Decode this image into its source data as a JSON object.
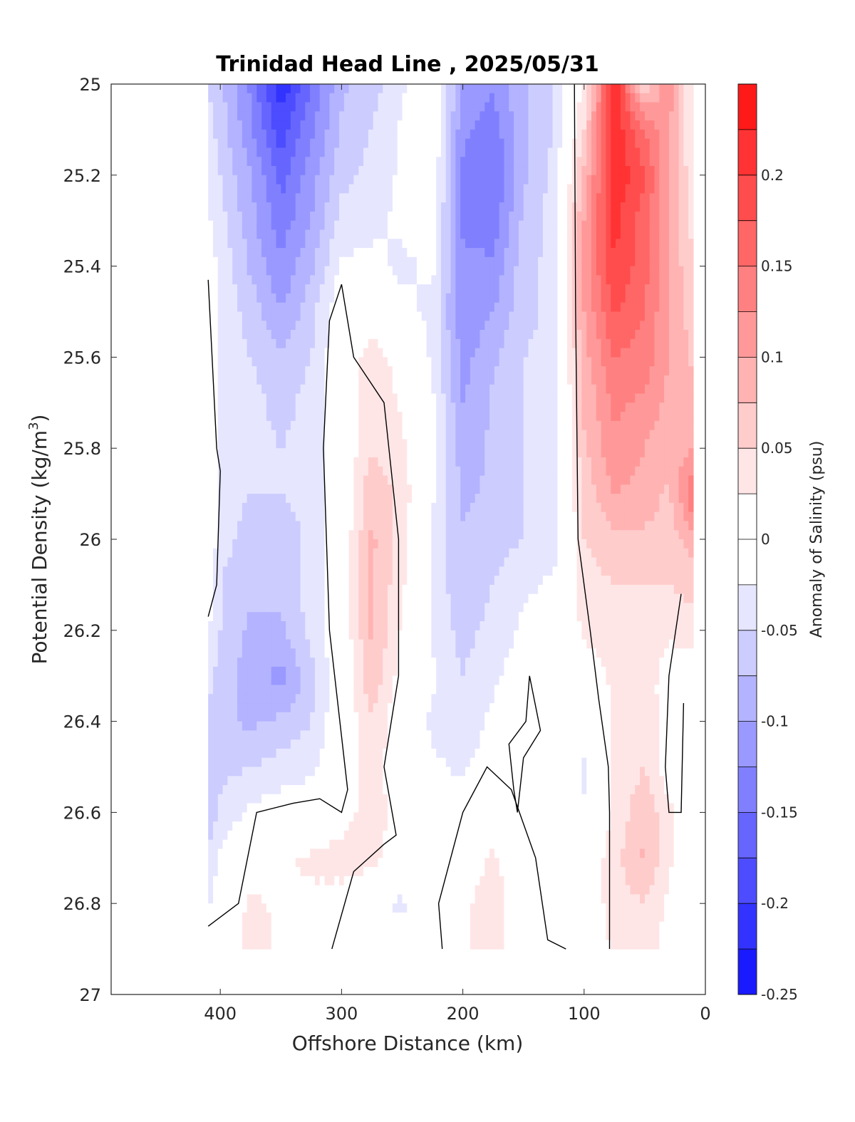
{
  "chart_data": {
    "type": "heatmap",
    "title": "Trinidad Head Line , 2025/05/31",
    "xlabel": "Offshore Distance (km)",
    "ylabel_main": "Potential Density (kg/m",
    "ylabel_sup": "3",
    "ylabel_close": ")",
    "colorbar_label": "Anomaly of Salinity (psu)",
    "xlim": [
      490,
      0
    ],
    "ylim": [
      27,
      25
    ],
    "x_reversed": true,
    "y_reversed": true,
    "x_ticks": [
      400,
      300,
      200,
      100,
      0
    ],
    "x_tick_labels": [
      "400",
      "300",
      "200",
      "100",
      "0"
    ],
    "y_ticks": [
      25,
      25.2,
      25.4,
      25.6,
      25.8,
      26,
      26.2,
      26.4,
      26.6,
      26.8,
      27
    ],
    "y_tick_labels": [
      "25",
      "25.2",
      "25.4",
      "25.6",
      "25.8",
      "26",
      "26.2",
      "26.4",
      "26.6",
      "26.8",
      "27"
    ],
    "colorbar": {
      "levels": [
        -0.25,
        -0.225,
        -0.2,
        -0.175,
        -0.15,
        -0.125,
        -0.1,
        -0.075,
        -0.05,
        -0.025,
        0,
        0.025,
        0.05,
        0.075,
        0.1,
        0.125,
        0.15,
        0.175,
        0.2,
        0.225,
        0.25
      ],
      "colors": [
        "#0000ff",
        "#1a1aff",
        "#3333ff",
        "#4d4dff",
        "#6666ff",
        "#8080ff",
        "#9999ff",
        "#b3b3ff",
        "#ccccff",
        "#e6e6ff",
        "#ffffff",
        "#ffffff",
        "#ffe6e6",
        "#ffcccc",
        "#ffb3b3",
        "#ff9999",
        "#ff8080",
        "#ff6666",
        "#ff4d4d",
        "#ff3333",
        "#ff1a1a",
        "#ff0000"
      ],
      "tick_values": [
        -0.25,
        -0.2,
        -0.15,
        -0.1,
        -0.05,
        0,
        0.05,
        0.1,
        0.15,
        0.2
      ],
      "tick_labels": [
        "-0.25",
        "-0.2",
        "-0.15",
        "-0.1",
        "-0.05",
        "0",
        "0.05",
        "0.1",
        "0.15",
        "0.2"
      ],
      "range": [
        -0.25,
        0.25
      ]
    },
    "data_extent": {
      "x": [
        10,
        410
      ],
      "y": [
        25,
        26.9
      ]
    },
    "grid_x": [
      410,
      400,
      375,
      350,
      325,
      300,
      275,
      250,
      225,
      200,
      175,
      150,
      125,
      100,
      75,
      50,
      30,
      10
    ],
    "grid_y": [
      25,
      25.1,
      25.2,
      25.3,
      25.4,
      25.5,
      25.6,
      25.7,
      25.8,
      25.9,
      26,
      26.1,
      26.2,
      26.3,
      26.4,
      26.5,
      26.6,
      26.7,
      26.8,
      26.9
    ],
    "values": [
      [
        -0.05,
        -0.07,
        -0.13,
        -0.22,
        -0.15,
        -0.08,
        -0.06,
        -0.03,
        0.0,
        -0.1,
        -0.12,
        -0.08,
        -0.05,
        0.03,
        0.22,
        0.05,
        0.12,
        0.02
      ],
      [
        -0.04,
        -0.06,
        -0.12,
        -0.19,
        -0.13,
        -0.07,
        -0.05,
        -0.02,
        0.0,
        -0.12,
        -0.14,
        -0.08,
        -0.05,
        0.05,
        0.22,
        0.15,
        0.1,
        0.02
      ],
      [
        -0.03,
        -0.05,
        -0.1,
        -0.16,
        -0.11,
        -0.06,
        -0.04,
        -0.02,
        0.0,
        -0.13,
        -0.15,
        -0.08,
        -0.04,
        0.08,
        0.22,
        0.18,
        0.1,
        0.03
      ],
      [
        -0.02,
        -0.04,
        -0.09,
        -0.14,
        -0.1,
        -0.04,
        -0.03,
        -0.02,
        -0.01,
        -0.13,
        -0.14,
        -0.07,
        -0.04,
        0.1,
        0.21,
        0.16,
        0.1,
        0.04
      ],
      [
        -0.01,
        -0.03,
        -0.08,
        -0.12,
        -0.08,
        -0.02,
        -0.02,
        -0.03,
        -0.02,
        -0.12,
        -0.12,
        -0.06,
        -0.04,
        0.11,
        0.2,
        0.16,
        0.1,
        0.05
      ],
      [
        0.0,
        -0.03,
        -0.06,
        -0.1,
        -0.06,
        0.0,
        0.01,
        -0.02,
        -0.03,
        -0.12,
        -0.1,
        -0.06,
        -0.04,
        0.1,
        0.18,
        0.15,
        0.1,
        0.06
      ],
      [
        0.01,
        -0.03,
        -0.05,
        -0.07,
        -0.05,
        0.0,
        0.04,
        0.01,
        -0.03,
        -0.11,
        -0.08,
        -0.05,
        -0.04,
        0.09,
        0.15,
        0.14,
        0.1,
        0.07
      ],
      [
        0.02,
        -0.03,
        -0.04,
        -0.06,
        -0.04,
        0.0,
        0.05,
        0.02,
        -0.02,
        -0.1,
        -0.07,
        -0.05,
        -0.04,
        0.08,
        0.13,
        0.12,
        0.09,
        0.08
      ],
      [
        0.02,
        -0.03,
        -0.04,
        -0.05,
        -0.04,
        0.0,
        0.05,
        0.03,
        -0.01,
        -0.09,
        -0.07,
        -0.05,
        -0.04,
        0.07,
        0.12,
        0.1,
        0.08,
        0.1
      ],
      [
        0.01,
        -0.04,
        -0.05,
        -0.05,
        -0.04,
        0.0,
        0.07,
        0.04,
        -0.02,
        -0.08,
        -0.07,
        -0.05,
        -0.04,
        0.06,
        0.1,
        0.09,
        0.07,
        0.15
      ],
      [
        0.0,
        -0.04,
        -0.06,
        -0.07,
        -0.04,
        0.0,
        0.08,
        0.04,
        -0.03,
        -0.07,
        -0.06,
        -0.05,
        -0.04,
        0.05,
        0.07,
        0.07,
        0.06,
        0.09
      ],
      [
        -0.01,
        -0.05,
        -0.07,
        -0.07,
        -0.04,
        0.0,
        0.08,
        0.03,
        -0.03,
        -0.07,
        -0.05,
        -0.03,
        -0.02,
        0.04,
        0.05,
        0.05,
        0.05,
        0.06
      ],
      [
        -0.02,
        -0.05,
        -0.08,
        -0.08,
        -0.04,
        0.0,
        0.08,
        0.02,
        -0.03,
        -0.06,
        -0.04,
        -0.02,
        -0.01,
        0.03,
        0.04,
        0.04,
        0.03,
        0.04
      ],
      [
        -0.04,
        -0.06,
        -0.09,
        -0.11,
        -0.06,
        0.0,
        0.07,
        0.01,
        -0.02,
        -0.05,
        -0.03,
        -0.01,
        0.0,
        0.01,
        0.03,
        0.04,
        0.01,
        0.01
      ],
      [
        -0.06,
        -0.07,
        -0.08,
        -0.07,
        -0.05,
        0.0,
        0.05,
        0.0,
        -0.03,
        -0.04,
        -0.02,
        0.0,
        0.0,
        -0.01,
        0.03,
        0.05,
        0.0,
        0.0
      ],
      [
        -0.08,
        -0.06,
        -0.05,
        -0.04,
        -0.03,
        0.0,
        0.04,
        0.0,
        -0.02,
        -0.03,
        -0.01,
        0.0,
        0.0,
        -0.03,
        0.03,
        0.05,
        0.01,
        0.0
      ],
      [
        -0.07,
        -0.04,
        -0.02,
        -0.01,
        -0.01,
        0.01,
        0.04,
        0.01,
        -0.01,
        -0.01,
        0.0,
        0.0,
        0.0,
        -0.02,
        0.03,
        0.07,
        0.03,
        0.0
      ],
      [
        -0.05,
        -0.02,
        0.0,
        0.02,
        0.03,
        0.04,
        0.04,
        0.0,
        0.0,
        0.0,
        0.03,
        0.0,
        0.0,
        0.0,
        0.04,
        0.08,
        0.03,
        0.0
      ],
      [
        -0.03,
        0.0,
        0.03,
        0.02,
        0.02,
        0.01,
        -0.02,
        -0.03,
        0.0,
        0.02,
        0.04,
        0.0,
        0.0,
        0.0,
        0.04,
        0.05,
        0.02,
        0.0
      ],
      [
        -0.02,
        0.0,
        0.04,
        0.02,
        0.01,
        0.0,
        -0.02,
        -0.01,
        0.0,
        0.02,
        0.04,
        0.0,
        0.0,
        0.0,
        0.03,
        0.04,
        0.01,
        0.0
      ]
    ],
    "zero_contours": [
      [
        [
          410,
          25.43
        ],
        [
          403,
          25.8
        ],
        [
          400,
          25.85
        ],
        [
          403,
          26.1
        ],
        [
          410,
          26.17
        ]
      ],
      [
        [
          300,
          25.44
        ],
        [
          310,
          25.52
        ],
        [
          315,
          25.8
        ],
        [
          310,
          26.2
        ],
        [
          295,
          26.55
        ],
        [
          300,
          26.6
        ],
        [
          318,
          26.57
        ],
        [
          340,
          26.58
        ],
        [
          370,
          26.6
        ],
        [
          385,
          26.8
        ],
        [
          410,
          26.85
        ]
      ],
      [
        [
          300,
          25.44
        ],
        [
          290,
          25.6
        ],
        [
          265,
          25.7
        ],
        [
          253,
          26.0
        ],
        [
          253,
          26.3
        ],
        [
          265,
          26.5
        ],
        [
          255,
          26.65
        ],
        [
          265,
          26.67
        ],
        [
          290,
          26.73
        ],
        [
          308,
          26.9
        ]
      ],
      [
        [
          108,
          25.0
        ],
        [
          107,
          25.5
        ],
        [
          105,
          26.0
        ],
        [
          95,
          26.2
        ],
        [
          88,
          26.35
        ],
        [
          80,
          26.5
        ],
        [
          79,
          26.6
        ],
        [
          79,
          26.9
        ]
      ],
      [
        [
          217,
          26.9
        ],
        [
          220,
          26.8
        ],
        [
          200,
          26.6
        ],
        [
          180,
          26.5
        ],
        [
          160,
          26.55
        ],
        [
          140,
          26.7
        ],
        [
          130,
          26.88
        ],
        [
          115,
          26.9
        ]
      ],
      [
        [
          20,
          26.12
        ],
        [
          30,
          26.3
        ],
        [
          33,
          26.5
        ],
        [
          30,
          26.6
        ],
        [
          20,
          26.6
        ],
        [
          18,
          26.36
        ]
      ],
      [
        [
          145,
          26.3
        ],
        [
          148,
          26.4
        ],
        [
          162,
          26.45
        ],
        [
          158,
          26.55
        ],
        [
          155,
          26.6
        ],
        [
          150,
          26.48
        ],
        [
          136,
          26.42
        ],
        [
          145,
          26.3
        ]
      ]
    ]
  }
}
